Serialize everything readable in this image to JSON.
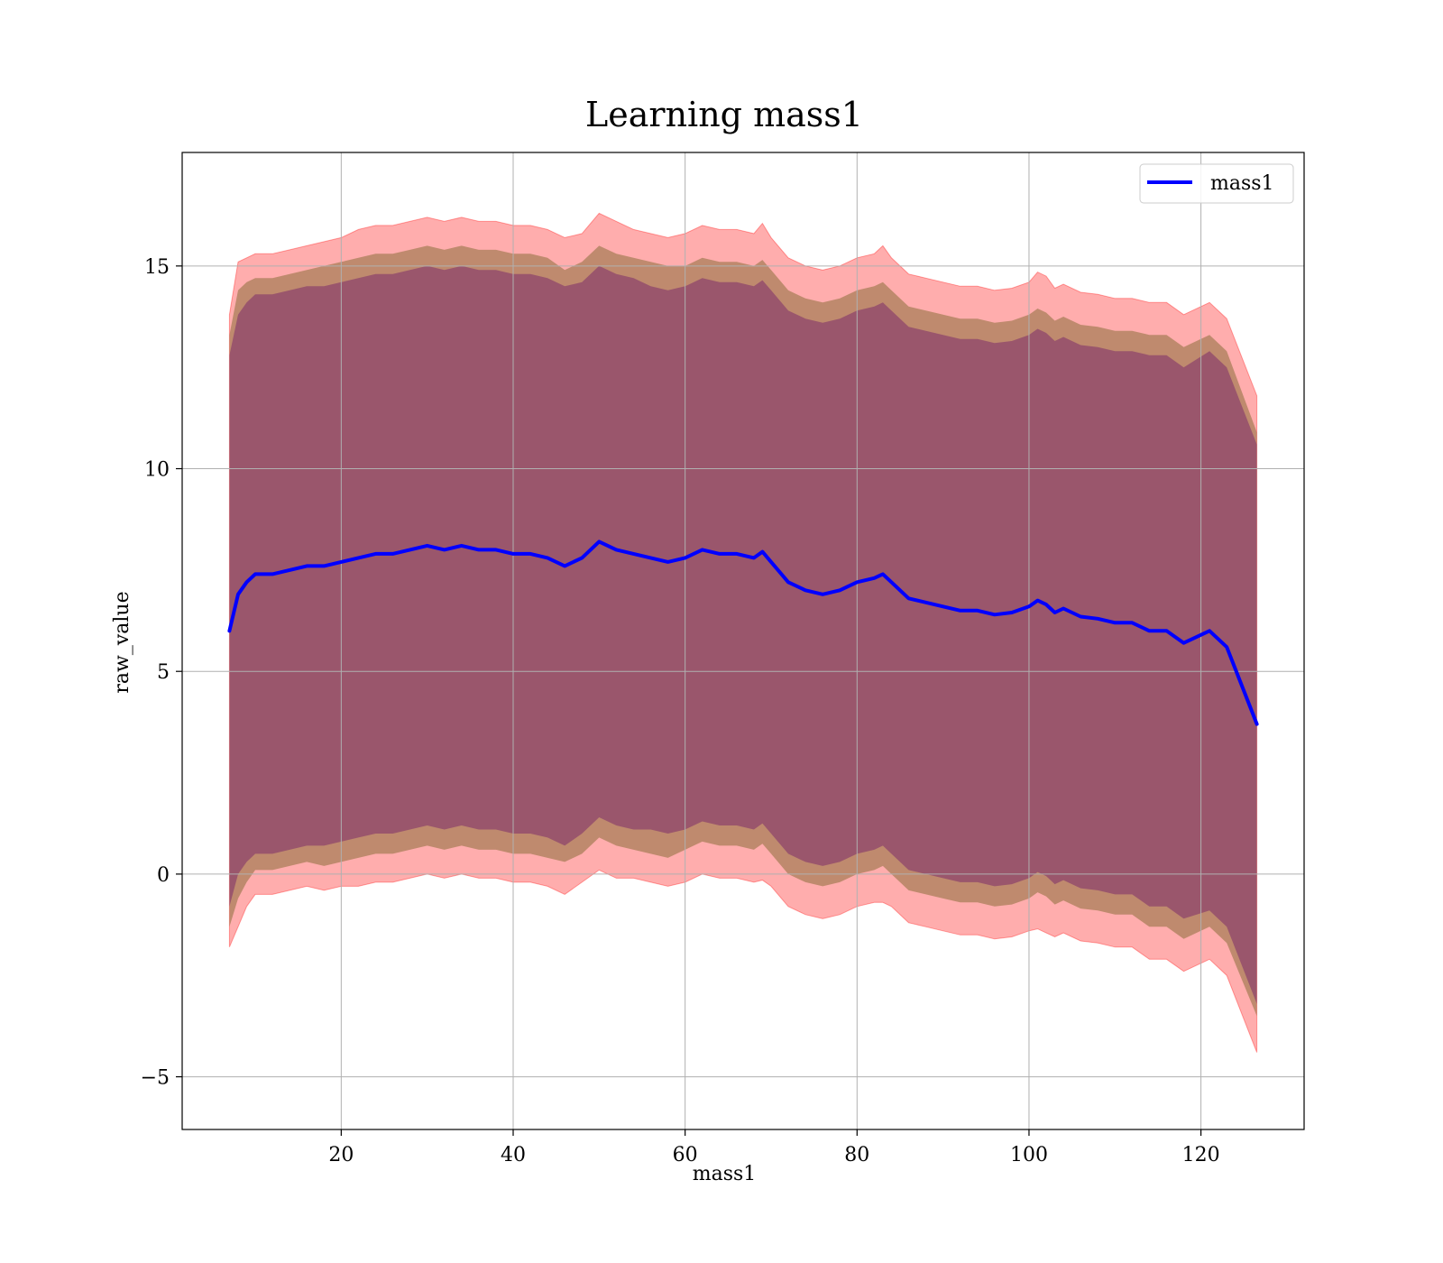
{
  "chart_data": {
    "type": "line",
    "title": "Learning mass1",
    "xlabel": "mass1",
    "ylabel": "raw_value",
    "xlim": [
      1.5,
      132
    ],
    "ylim": [
      -6.3,
      17.8
    ],
    "xticks": [
      20,
      40,
      60,
      80,
      100,
      120
    ],
    "yticks": [
      -5,
      0,
      5,
      10,
      15
    ],
    "xtick_labels": [
      "20",
      "40",
      "60",
      "80",
      "100",
      "120"
    ],
    "ytick_labels": [
      "−5",
      "0",
      "5",
      "10",
      "15"
    ],
    "grid": true,
    "legend": {
      "position": "top-right",
      "entries": [
        "mass1"
      ]
    },
    "colors": {
      "line": "#0000ff",
      "outer_band": "#ff0000",
      "middle_band": "#8b6d3a",
      "inner_band": "#7b2c6b",
      "grid": "#b0b0b0"
    },
    "series": [
      {
        "name": "mass1",
        "x": [
          7,
          8,
          9,
          10,
          12,
          14,
          16,
          18,
          20,
          22,
          24,
          26,
          28,
          30,
          32,
          34,
          36,
          38,
          40,
          42,
          44,
          46,
          48,
          50,
          52,
          54,
          56,
          58,
          60,
          62,
          64,
          66,
          68,
          69,
          70,
          72,
          74,
          76,
          78,
          80,
          82,
          83,
          84,
          86,
          88,
          90,
          92,
          94,
          96,
          98,
          100,
          101,
          102,
          103,
          104,
          106,
          108,
          110,
          112,
          114,
          116,
          118,
          121,
          123,
          126.5
        ],
        "y": [
          6.0,
          6.9,
          7.2,
          7.4,
          7.4,
          7.5,
          7.6,
          7.6,
          7.7,
          7.8,
          7.9,
          7.9,
          8.0,
          8.1,
          8.0,
          8.1,
          8.0,
          8.0,
          7.9,
          7.9,
          7.8,
          7.6,
          7.8,
          8.2,
          8.0,
          7.9,
          7.8,
          7.7,
          7.8,
          8.0,
          7.9,
          7.9,
          7.8,
          7.95,
          7.7,
          7.2,
          7.0,
          6.9,
          7.0,
          7.2,
          7.3,
          7.4,
          7.2,
          6.8,
          6.7,
          6.6,
          6.5,
          6.5,
          6.4,
          6.45,
          6.6,
          6.75,
          6.65,
          6.45,
          6.55,
          6.35,
          6.3,
          6.2,
          6.2,
          6.0,
          6.0,
          5.7,
          6.0,
          5.6,
          3.7
        ],
        "band_outer_half_width": [
          7.8,
          8.2,
          8.0,
          7.9,
          7.9,
          7.9,
          7.9,
          8.0,
          8.0,
          8.1,
          8.1,
          8.1,
          8.1,
          8.1,
          8.1,
          8.1,
          8.1,
          8.1,
          8.1,
          8.1,
          8.1,
          8.1,
          8.0,
          8.1,
          8.1,
          8.0,
          8.0,
          8.0,
          8.0,
          8.0,
          8.0,
          8.0,
          8.0,
          8.1,
          8.0,
          8.0,
          8.0,
          8.0,
          8.0,
          8.0,
          8.0,
          8.1,
          8.0,
          8.0,
          8.0,
          8.0,
          8.0,
          8.0,
          8.0,
          8.0,
          8.0,
          8.1,
          8.1,
          8.0,
          8.0,
          8.0,
          8.0,
          8.0,
          8.0,
          8.1,
          8.1,
          8.1,
          8.1,
          8.1,
          8.1
        ],
        "band_middle_half_width": [
          7.3,
          7.5,
          7.4,
          7.3,
          7.3,
          7.3,
          7.3,
          7.4,
          7.4,
          7.4,
          7.4,
          7.4,
          7.4,
          7.4,
          7.4,
          7.4,
          7.4,
          7.4,
          7.4,
          7.4,
          7.4,
          7.3,
          7.3,
          7.3,
          7.3,
          7.3,
          7.3,
          7.3,
          7.2,
          7.2,
          7.2,
          7.2,
          7.2,
          7.2,
          7.2,
          7.2,
          7.2,
          7.2,
          7.2,
          7.2,
          7.2,
          7.2,
          7.2,
          7.2,
          7.2,
          7.2,
          7.2,
          7.2,
          7.2,
          7.2,
          7.2,
          7.2,
          7.2,
          7.2,
          7.2,
          7.2,
          7.2,
          7.2,
          7.2,
          7.3,
          7.3,
          7.3,
          7.3,
          7.3,
          7.2
        ],
        "band_inner_half_width": [
          6.8,
          6.9,
          6.9,
          6.9,
          6.9,
          6.9,
          6.9,
          6.9,
          6.9,
          6.9,
          6.9,
          6.9,
          6.9,
          6.9,
          6.9,
          6.9,
          6.9,
          6.9,
          6.9,
          6.9,
          6.9,
          6.9,
          6.8,
          6.8,
          6.8,
          6.8,
          6.7,
          6.7,
          6.7,
          6.7,
          6.7,
          6.7,
          6.7,
          6.7,
          6.7,
          6.7,
          6.7,
          6.7,
          6.7,
          6.7,
          6.7,
          6.7,
          6.7,
          6.7,
          6.7,
          6.7,
          6.7,
          6.7,
          6.7,
          6.7,
          6.7,
          6.7,
          6.7,
          6.7,
          6.7,
          6.7,
          6.7,
          6.7,
          6.7,
          6.8,
          6.8,
          6.8,
          6.9,
          6.9,
          6.9
        ]
      }
    ]
  }
}
